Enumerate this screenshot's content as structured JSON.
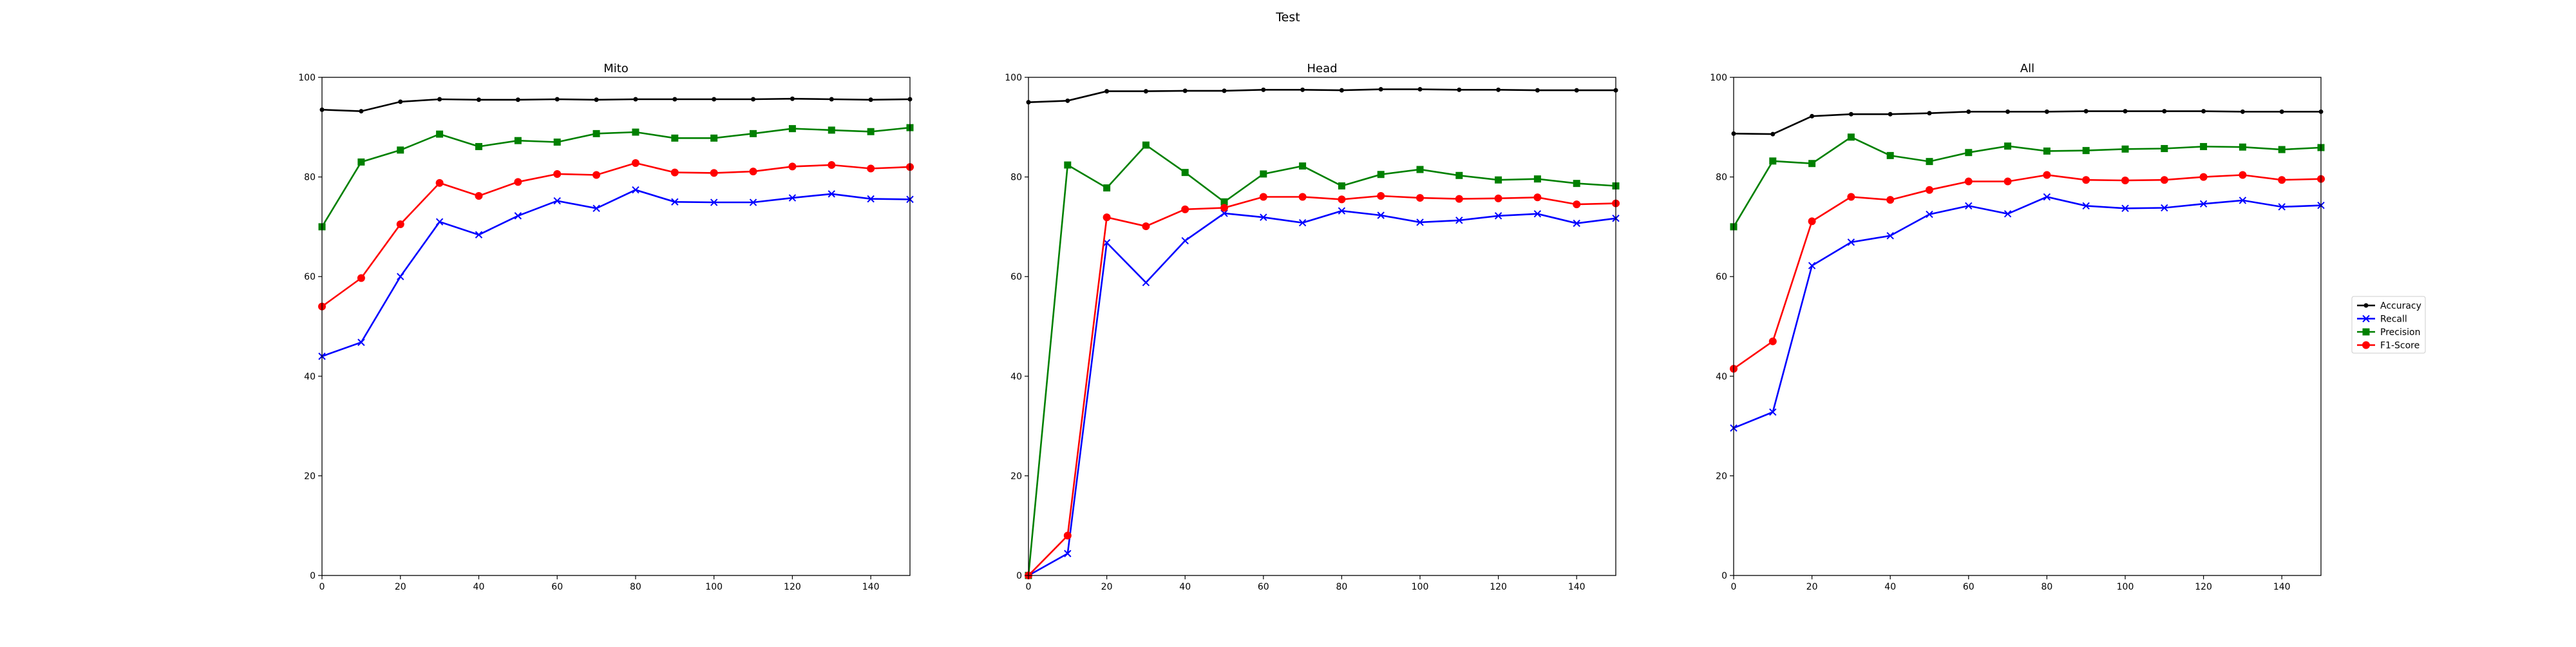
{
  "figure": {
    "title": "Test"
  },
  "colors": {
    "Accuracy": "#000000",
    "Recall": "#0000ff",
    "Precision": "#008000",
    "F1-Score": "#ff0000"
  },
  "markers": {
    "Accuracy": "point",
    "Recall": "x",
    "Precision": "square",
    "F1-Score": "circle"
  },
  "legend": {
    "placement": "right of last panel",
    "entries": [
      "Accuracy",
      "Recall",
      "Precision",
      "F1-Score"
    ]
  },
  "chart_data": [
    {
      "type": "line",
      "title": "Mito",
      "xlabel": "",
      "ylabel": "",
      "xlim": [
        0,
        150
      ],
      "ylim": [
        0,
        100
      ],
      "xticks": [
        0,
        20,
        40,
        60,
        80,
        100,
        120,
        140
      ],
      "yticks": [
        0,
        20,
        40,
        60,
        80,
        100
      ],
      "grid": false,
      "x": [
        0,
        10,
        20,
        30,
        40,
        50,
        60,
        70,
        80,
        90,
        100,
        110,
        120,
        130,
        140,
        150
      ],
      "series": [
        {
          "name": "Accuracy",
          "values": [
            93.5,
            93.2,
            95.1,
            95.6,
            95.5,
            95.5,
            95.6,
            95.5,
            95.6,
            95.6,
            95.6,
            95.6,
            95.7,
            95.6,
            95.5,
            95.6
          ]
        },
        {
          "name": "Recall",
          "values": [
            44.0,
            46.8,
            60.0,
            71.0,
            68.4,
            72.2,
            75.2,
            73.7,
            77.4,
            75.0,
            74.9,
            74.9,
            75.8,
            76.6,
            75.6,
            75.5
          ]
        },
        {
          "name": "Precision",
          "values": [
            70.0,
            83.0,
            85.4,
            88.6,
            86.1,
            87.3,
            87.0,
            88.7,
            89.0,
            87.8,
            87.8,
            88.7,
            89.7,
            89.4,
            89.1,
            89.9
          ]
        },
        {
          "name": "F1-Score",
          "values": [
            54.0,
            59.7,
            70.5,
            78.8,
            76.2,
            79.0,
            80.6,
            80.4,
            82.8,
            80.9,
            80.8,
            81.1,
            82.1,
            82.4,
            81.7,
            82.0
          ]
        }
      ]
    },
    {
      "type": "line",
      "title": "Head",
      "xlabel": "",
      "ylabel": "",
      "xlim": [
        0,
        150
      ],
      "ylim": [
        0,
        100
      ],
      "xticks": [
        0,
        20,
        40,
        60,
        80,
        100,
        120,
        140
      ],
      "yticks": [
        0,
        20,
        40,
        60,
        80,
        100
      ],
      "grid": false,
      "x": [
        0,
        10,
        20,
        30,
        40,
        50,
        60,
        70,
        80,
        90,
        100,
        110,
        120,
        130,
        140,
        150
      ],
      "series": [
        {
          "name": "Accuracy",
          "values": [
            95.0,
            95.3,
            97.2,
            97.2,
            97.3,
            97.3,
            97.5,
            97.5,
            97.4,
            97.6,
            97.6,
            97.5,
            97.5,
            97.4,
            97.4,
            97.4
          ]
        },
        {
          "name": "Recall",
          "values": [
            0.0,
            4.4,
            66.8,
            58.8,
            67.2,
            72.7,
            71.9,
            70.8,
            73.2,
            72.3,
            70.9,
            71.3,
            72.2,
            72.6,
            70.7,
            71.7
          ]
        },
        {
          "name": "Precision",
          "values": [
            0.0,
            82.4,
            77.8,
            86.4,
            80.9,
            75.0,
            80.6,
            82.2,
            78.2,
            80.5,
            81.5,
            80.3,
            79.4,
            79.6,
            78.7,
            78.2
          ]
        },
        {
          "name": "F1-Score",
          "values": [
            0.0,
            8.0,
            71.9,
            70.1,
            73.5,
            73.8,
            76.0,
            76.0,
            75.5,
            76.2,
            75.8,
            75.6,
            75.7,
            75.9,
            74.5,
            74.7
          ]
        }
      ]
    },
    {
      "type": "line",
      "title": "All",
      "xlabel": "",
      "ylabel": "",
      "xlim": [
        0,
        150
      ],
      "ylim": [
        0,
        100
      ],
      "xticks": [
        0,
        20,
        40,
        60,
        80,
        100,
        120,
        140
      ],
      "yticks": [
        0,
        20,
        40,
        60,
        80,
        100
      ],
      "grid": false,
      "x": [
        0,
        10,
        20,
        30,
        40,
        50,
        60,
        70,
        80,
        90,
        100,
        110,
        120,
        130,
        140,
        150
      ],
      "series": [
        {
          "name": "Accuracy",
          "values": [
            88.7,
            88.6,
            92.2,
            92.6,
            92.6,
            92.8,
            93.1,
            93.1,
            93.1,
            93.2,
            93.2,
            93.2,
            93.2,
            93.1,
            93.1,
            93.1
          ]
        },
        {
          "name": "Recall",
          "values": [
            29.6,
            32.8,
            62.2,
            66.9,
            68.2,
            72.5,
            74.2,
            72.6,
            76.0,
            74.2,
            73.7,
            73.8,
            74.6,
            75.3,
            74.0,
            74.3
          ]
        },
        {
          "name": "Precision",
          "values": [
            70.0,
            83.2,
            82.7,
            88.0,
            84.3,
            83.1,
            84.9,
            86.2,
            85.2,
            85.3,
            85.6,
            85.7,
            86.1,
            86.0,
            85.5,
            85.9
          ]
        },
        {
          "name": "F1-Score",
          "values": [
            41.5,
            47.0,
            71.1,
            76.0,
            75.4,
            77.4,
            79.1,
            79.1,
            80.4,
            79.4,
            79.3,
            79.4,
            80.0,
            80.4,
            79.4,
            79.6
          ]
        }
      ]
    }
  ]
}
